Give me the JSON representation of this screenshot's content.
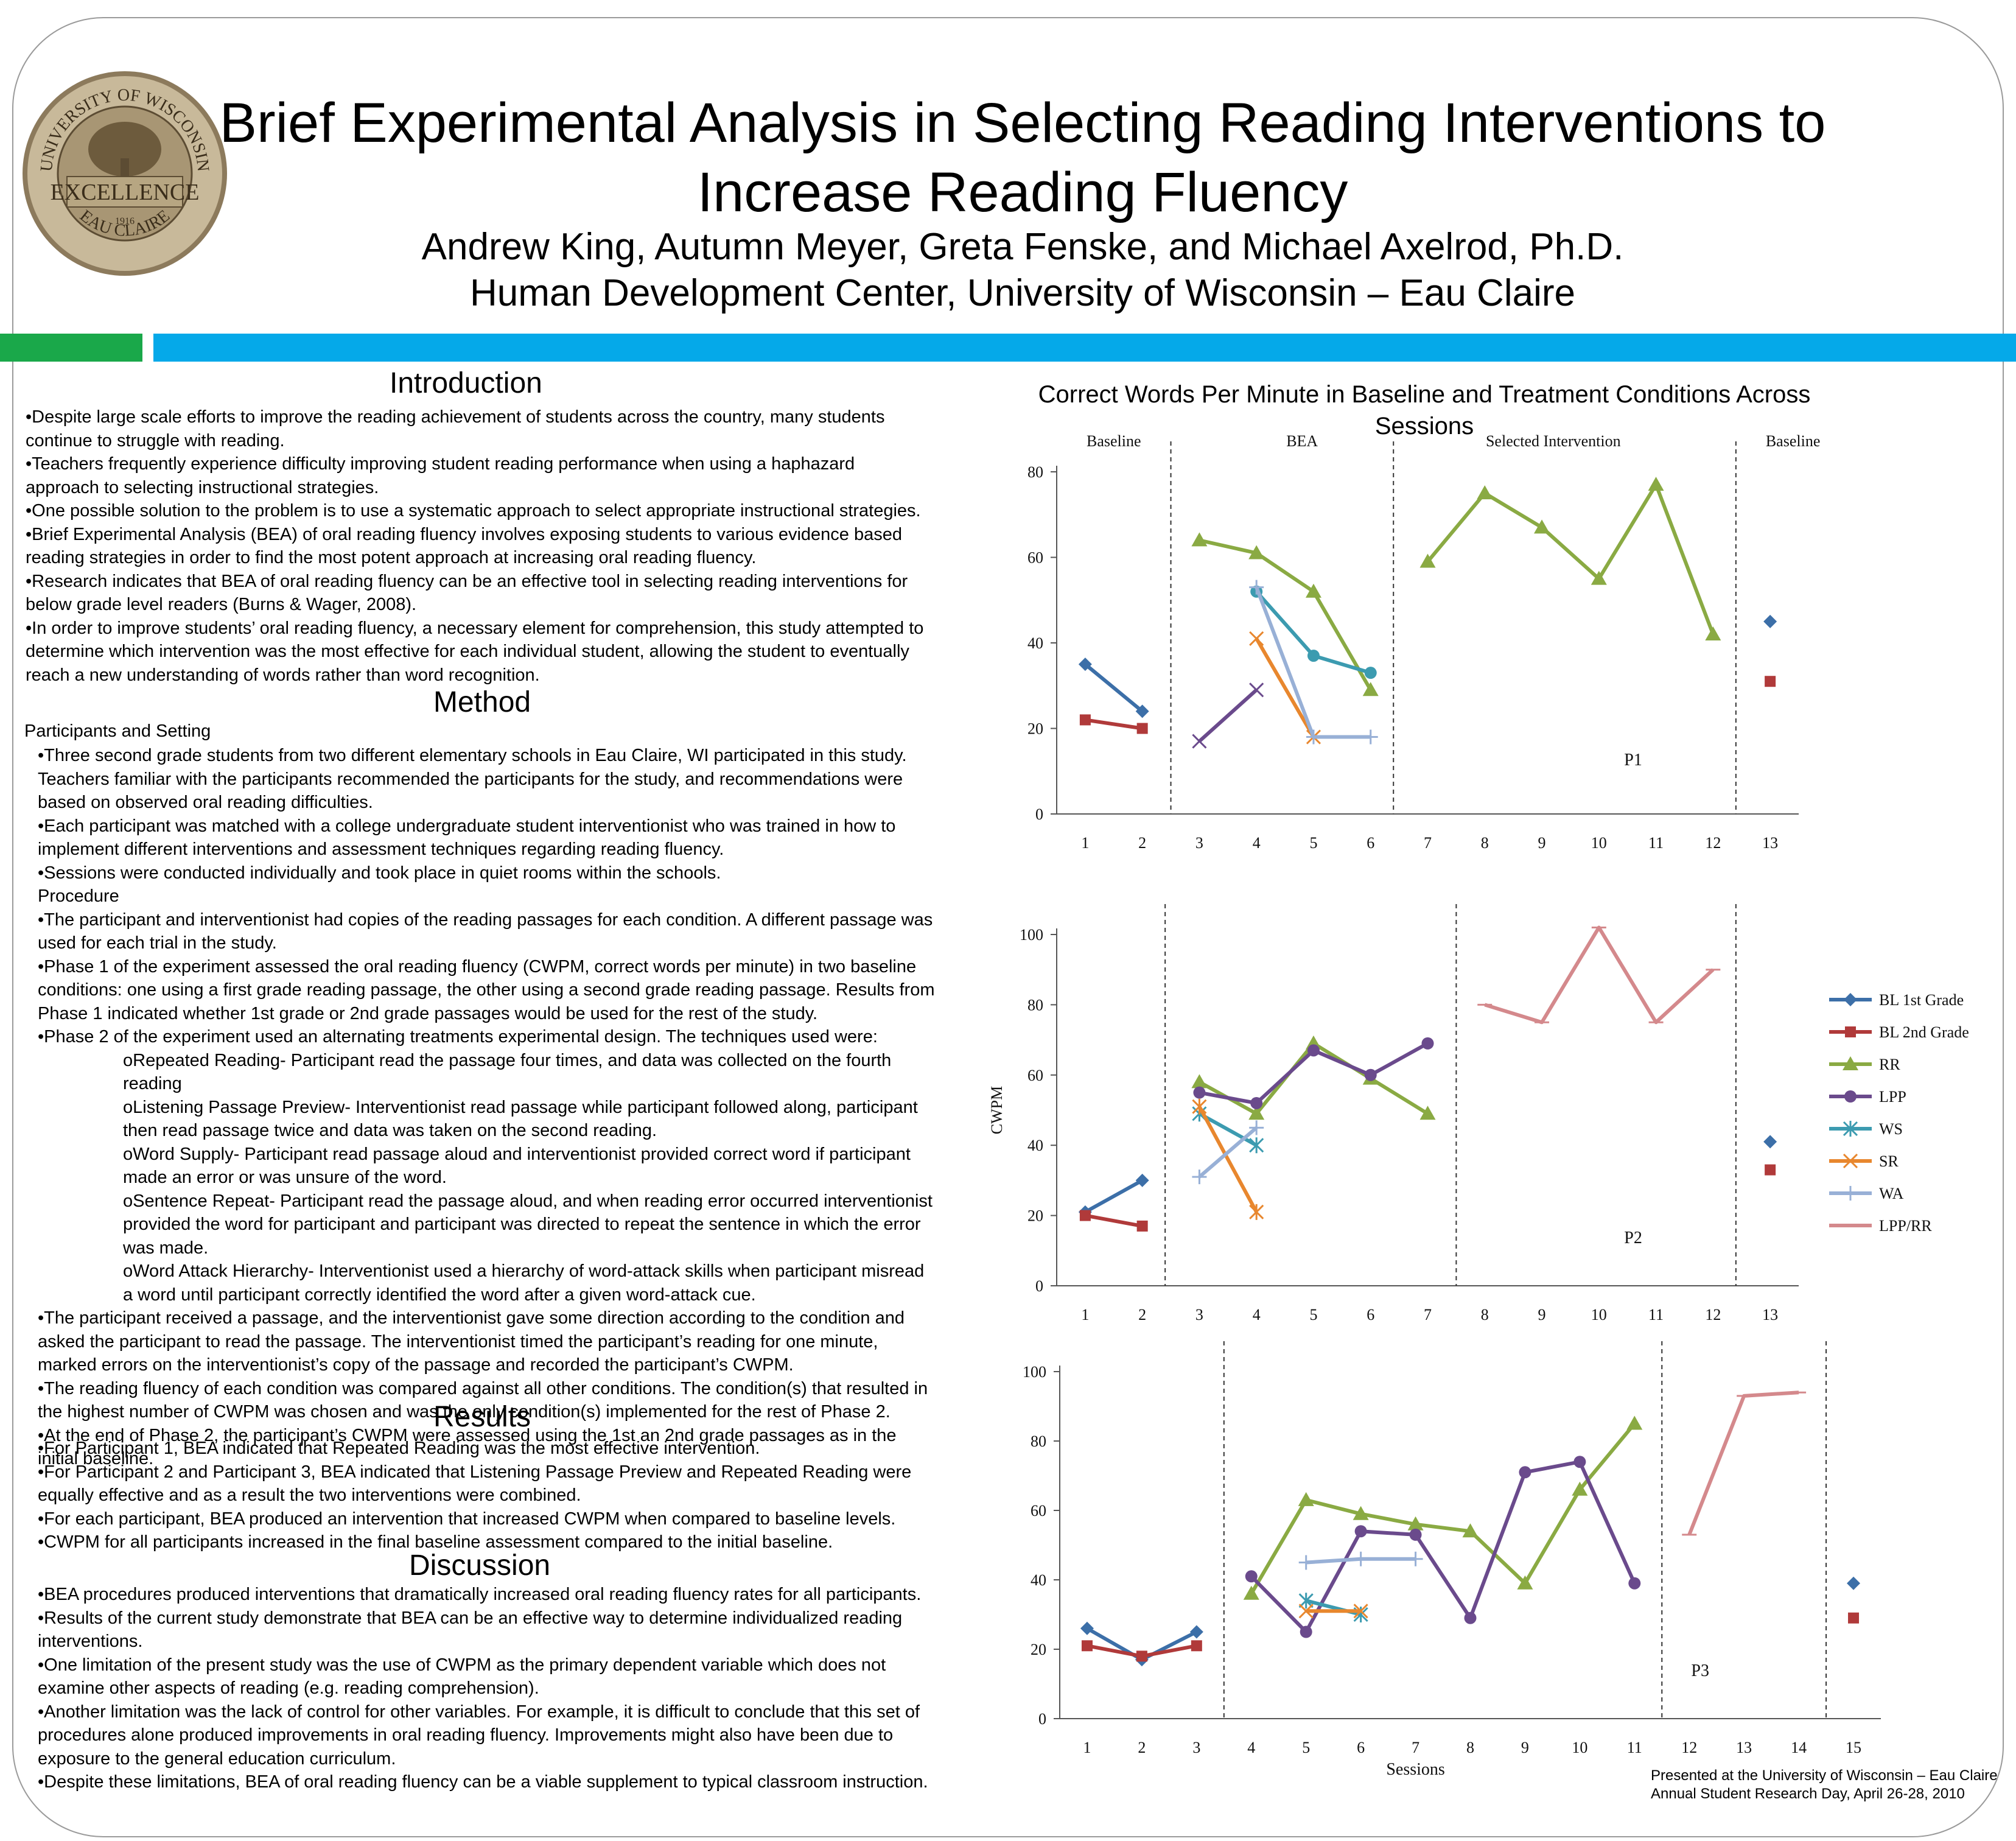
{
  "header": {
    "title_line1": "Brief Experimental Analysis in Selecting Reading Interventions to",
    "title_line2": "Increase Reading Fluency",
    "authors": "Andrew King, Autumn Meyer, Greta Fenske, and Michael Axelrod, Ph.D.",
    "affiliation": "Human Development Center, University of Wisconsin – Eau Claire"
  },
  "seal": {
    "top_text": "UNIVERSITY OF WISCONSIN",
    "middle_text": "EXCELLENCE",
    "bottom_text": "EAU CLAIRE",
    "year": "1916"
  },
  "introduction": {
    "heading": "Introduction",
    "bullets": [
      "•Despite large scale efforts to improve the reading achievement of students across the country, many students continue to struggle with reading.",
      "•Teachers frequently experience difficulty improving student reading performance when using a haphazard approach to selecting instructional strategies.",
      "•One possible solution to the problem is to use a systematic approach to select appropriate instructional strategies.",
      "•Brief Experimental Analysis (BEA) of oral reading fluency involves exposing students to various evidence based reading strategies in order to find the most potent approach at increasing oral reading fluency.",
      "•Research indicates that BEA of oral reading fluency can be an effective tool in selecting reading interventions for below grade level readers (Burns & Wager, 2008).",
      "•In order to improve students’ oral reading fluency, a necessary element for comprehension, this study attempted to determine which intervention was the most effective for each individual student, allowing the student to eventually reach a new understanding of words rather than word recognition."
    ]
  },
  "method": {
    "heading": "Method",
    "participants_heading": "Participants and Setting",
    "participants": [
      "•Three second grade students from two different elementary schools in Eau Claire, WI participated in this study. Teachers familiar with the participants recommended the participants for the study, and recommendations were based on observed oral reading difficulties.",
      "•Each participant was matched with a college undergraduate student interventionist who was trained in how to implement different interventions and assessment techniques regarding reading fluency.",
      "•Sessions were conducted individually and took place in quiet rooms within the schools."
    ],
    "procedure_heading": "Procedure",
    "procedure": [
      "•The participant and interventionist had copies of the reading passages for each condition.  A different passage was used for each trial in the study.",
      "•Phase 1 of the experiment assessed the oral reading fluency (CWPM, correct words per minute) in two baseline conditions: one using a first grade reading passage, the other using a second grade reading passage.  Results from Phase 1 indicated whether 1st grade or 2nd grade passages would be used for the rest of the study.",
      "•Phase 2 of the experiment used an alternating treatments experimental design.  The techniques used were:"
    ],
    "techniques": [
      "oRepeated Reading- Participant read the passage four times, and data was collected on the fourth reading",
      "oListening Passage Preview- Interventionist read passage while participant followed along, participant then read passage twice and data was taken on the second reading.",
      "oWord Supply- Participant read passage aloud and interventionist provided correct word if participant made an error or was unsure of the word.",
      "oSentence Repeat- Participant read the passage aloud, and when reading error occurred interventionist provided the word for participant and participant was directed to repeat the sentence in which the error was made.",
      "oWord Attack Hierarchy- Interventionist used a hierarchy of word-attack skills when participant misread a word until participant correctly identified the word after a given word-attack cue."
    ],
    "procedure_after": [
      "•The participant received a passage, and the interventionist gave some direction according to the condition and asked the participant to read the passage. The interventionist timed the participant’s reading for one minute, marked errors on the interventionist’s copy of the passage and recorded the participant’s CWPM.",
      "•The reading fluency of each condition was compared against all other conditions. The condition(s) that resulted in the highest number of CWPM was chosen and was the only condition(s) implemented for the rest of Phase 2.",
      "•At the end of Phase 2, the participant’s CWPM were assessed using the 1st an 2nd grade passages as in the initial baseline."
    ]
  },
  "results": {
    "heading": "Results",
    "bullets": [
      "•For Participant 1, BEA indicated that Repeated Reading was the most effective intervention.",
      "•For Participant 2 and Participant 3, BEA indicated that Listening Passage Preview and Repeated Reading were equally effective and as a result the two interventions were combined.",
      "•For each participant, BEA produced an intervention that increased CWPM when compared to baseline levels.",
      "•CWPM for all participants increased in the final baseline assessment compared to the initial baseline."
    ]
  },
  "discussion": {
    "heading": "Discussion",
    "bullets": [
      "•BEA procedures produced interventions that dramatically increased oral reading fluency rates for all participants.",
      "•Results of the current study demonstrate that BEA can be an effective way to determine individualized reading interventions.",
      "•One limitation of the present study was the use of CWPM as the primary dependent variable which does not examine other aspects of reading (e.g. reading comprehension).",
      "•Another limitation was the lack of control for other variables. For example, it is difficult to conclude that this set of procedures alone produced improvements in oral reading fluency. Improvements might also have been due to exposure to the general education curriculum.",
      "•Despite these limitations, BEA of oral reading fluency can be a viable supplement to typical classroom instruction."
    ]
  },
  "figure_title": "Correct Words Per Minute in Baseline and Treatment Conditions Across Sessions",
  "footer": {
    "line1": "Presented at the University of Wisconsin – Eau Claire",
    "line2": "Annual Student Research Day, April 26-28, 2010"
  },
  "colors": {
    "BL 1st Grade": "#3c6fa8",
    "BL 2nd Grade": "#b03a3a",
    "RR": "#8aaa43",
    "LPP": "#6a4a8c",
    "WS": "#3c9bb0",
    "SR": "#e8872e",
    "WA": "#98b0d6",
    "LPP/RR": "#d4898c"
  },
  "legend": [
    "BL 1st Grade",
    "BL 2nd Grade",
    "RR",
    "LPP",
    "WS",
    "SR",
    "WA",
    "LPP/RR"
  ],
  "chart_data": [
    {
      "type": "line",
      "panel_label": "P1",
      "xlabel": "",
      "ylabel": "",
      "ylim": [
        0,
        80
      ],
      "yticks": [
        0,
        20,
        40,
        60,
        80
      ],
      "x_categories": [
        "1",
        "2",
        "3",
        "4",
        "5",
        "6",
        "7",
        "8",
        "9",
        "10",
        "11",
        "12",
        "13"
      ],
      "phase_labels": [
        {
          "text": "Baseline",
          "at": 1.5
        },
        {
          "text": "BEA",
          "at": 4.8
        },
        {
          "text": "Selected Intervention",
          "at": 9.2
        },
        {
          "text": "Baseline",
          "at": 13.4
        }
      ],
      "phase_lines": [
        2.5,
        6.4,
        12.4
      ],
      "series": [
        {
          "name": "BL 1st Grade",
          "marker": "diamond",
          "points": [
            [
              1,
              35
            ],
            [
              2,
              24
            ]
          ]
        },
        {
          "name": "BL 1st Grade",
          "marker": "diamond",
          "points": [
            [
              13,
              45
            ]
          ]
        },
        {
          "name": "BL 2nd Grade",
          "marker": "square",
          "points": [
            [
              1,
              22
            ],
            [
              2,
              20
            ]
          ]
        },
        {
          "name": "BL 2nd Grade",
          "marker": "square",
          "points": [
            [
              13,
              31
            ]
          ]
        },
        {
          "name": "RR",
          "marker": "triangle",
          "points": [
            [
              3,
              64
            ],
            [
              4,
              61
            ],
            [
              5,
              52
            ],
            [
              6,
              29
            ]
          ]
        },
        {
          "name": "RR",
          "marker": "triangle",
          "points": [
            [
              7,
              59
            ],
            [
              8,
              75
            ],
            [
              9,
              67
            ],
            [
              10,
              55
            ],
            [
              11,
              77
            ],
            [
              12,
              42
            ]
          ]
        },
        {
          "name": "LPP",
          "marker": "x",
          "points": [
            [
              3,
              17
            ],
            [
              4,
              29
            ]
          ]
        },
        {
          "name": "WS",
          "marker": "circle",
          "points": [
            [
              4,
              52
            ],
            [
              5,
              37
            ],
            [
              6,
              33
            ]
          ]
        },
        {
          "name": "SR",
          "marker": "x",
          "points": [
            [
              4,
              41
            ],
            [
              5,
              18
            ]
          ]
        },
        {
          "name": "WA",
          "marker": "plus",
          "points": [
            [
              4,
              53
            ],
            [
              5,
              18
            ],
            [
              6,
              18
            ]
          ]
        }
      ]
    },
    {
      "type": "line",
      "panel_label": "P2",
      "xlabel": "",
      "ylabel": "CWPM",
      "ylim": [
        0,
        100
      ],
      "yticks": [
        0,
        20,
        40,
        60,
        80,
        100
      ],
      "x_categories": [
        "1",
        "2",
        "3",
        "4",
        "5",
        "6",
        "7",
        "8",
        "9",
        "10",
        "11",
        "12",
        "13"
      ],
      "phase_labels": [],
      "phase_lines": [
        2.4,
        7.5,
        12.4
      ],
      "series": [
        {
          "name": "BL 1st Grade",
          "marker": "diamond",
          "points": [
            [
              1,
              21
            ],
            [
              2,
              30
            ]
          ]
        },
        {
          "name": "BL 1st Grade",
          "marker": "diamond",
          "points": [
            [
              13,
              41
            ]
          ]
        },
        {
          "name": "BL 2nd Grade",
          "marker": "square",
          "points": [
            [
              1,
              20
            ],
            [
              2,
              17
            ]
          ]
        },
        {
          "name": "BL 2nd Grade",
          "marker": "square",
          "points": [
            [
              13,
              33
            ]
          ]
        },
        {
          "name": "RR",
          "marker": "triangle",
          "points": [
            [
              3,
              58
            ],
            [
              4,
              49
            ],
            [
              5,
              69
            ],
            [
              6,
              59
            ],
            [
              7,
              49
            ]
          ]
        },
        {
          "name": "LPP",
          "marker": "circle",
          "points": [
            [
              3,
              55
            ],
            [
              4,
              52
            ],
            [
              5,
              67
            ],
            [
              6,
              60
            ],
            [
              7,
              69
            ]
          ]
        },
        {
          "name": "WS",
          "marker": "star",
          "points": [
            [
              3,
              49
            ],
            [
              4,
              40
            ]
          ]
        },
        {
          "name": "SR",
          "marker": "star",
          "points": [
            [
              3,
              51
            ],
            [
              4,
              21
            ]
          ]
        },
        {
          "name": "WA",
          "marker": "plus",
          "points": [
            [
              3,
              31
            ],
            [
              4,
              45
            ]
          ]
        },
        {
          "name": "LPP/RR",
          "marker": "dash",
          "points": [
            [
              8,
              80
            ],
            [
              9,
              75
            ],
            [
              10,
              102
            ],
            [
              11,
              75
            ],
            [
              12,
              90
            ]
          ]
        }
      ]
    },
    {
      "type": "line",
      "panel_label": "P3",
      "xlabel": "Sessions",
      "ylabel": "",
      "ylim": [
        0,
        100
      ],
      "yticks": [
        0,
        20,
        40,
        60,
        80,
        100
      ],
      "x_categories": [
        "1",
        "2",
        "3",
        "4",
        "5",
        "6",
        "7",
        "8",
        "9",
        "10",
        "11",
        "12",
        "13",
        "14",
        "15"
      ],
      "phase_labels": [],
      "phase_lines": [
        3.5,
        11.5,
        14.5
      ],
      "series": [
        {
          "name": "BL 1st Grade",
          "marker": "diamond",
          "points": [
            [
              1,
              26
            ],
            [
              2,
              17
            ],
            [
              3,
              25
            ]
          ]
        },
        {
          "name": "BL 1st Grade",
          "marker": "diamond",
          "points": [
            [
              15,
              39
            ]
          ]
        },
        {
          "name": "BL 2nd Grade",
          "marker": "square",
          "points": [
            [
              1,
              21
            ],
            [
              2,
              18
            ],
            [
              3,
              21
            ]
          ]
        },
        {
          "name": "BL 2nd Grade",
          "marker": "square",
          "points": [
            [
              15,
              29
            ]
          ]
        },
        {
          "name": "RR",
          "marker": "triangle",
          "points": [
            [
              4,
              36
            ],
            [
              5,
              63
            ],
            [
              6,
              59
            ],
            [
              7,
              56
            ],
            [
              8,
              54
            ],
            [
              9,
              39
            ],
            [
              10,
              66
            ],
            [
              11,
              85
            ]
          ]
        },
        {
          "name": "LPP",
          "marker": "circle",
          "points": [
            [
              4,
              41
            ],
            [
              5,
              25
            ],
            [
              6,
              54
            ],
            [
              7,
              53
            ],
            [
              8,
              29
            ],
            [
              9,
              71
            ],
            [
              10,
              74
            ],
            [
              11,
              39
            ]
          ]
        },
        {
          "name": "WS",
          "marker": "star",
          "points": [
            [
              5,
              34
            ],
            [
              6,
              30
            ]
          ]
        },
        {
          "name": "SR",
          "marker": "x",
          "points": [
            [
              5,
              31
            ],
            [
              6,
              31
            ]
          ]
        },
        {
          "name": "WA",
          "marker": "plus",
          "points": [
            [
              5,
              45
            ],
            [
              6,
              46
            ],
            [
              7,
              46
            ]
          ]
        },
        {
          "name": "LPP/RR",
          "marker": "dash",
          "points": [
            [
              12,
              53
            ],
            [
              13,
              93
            ],
            [
              14,
              94
            ]
          ]
        }
      ]
    }
  ]
}
